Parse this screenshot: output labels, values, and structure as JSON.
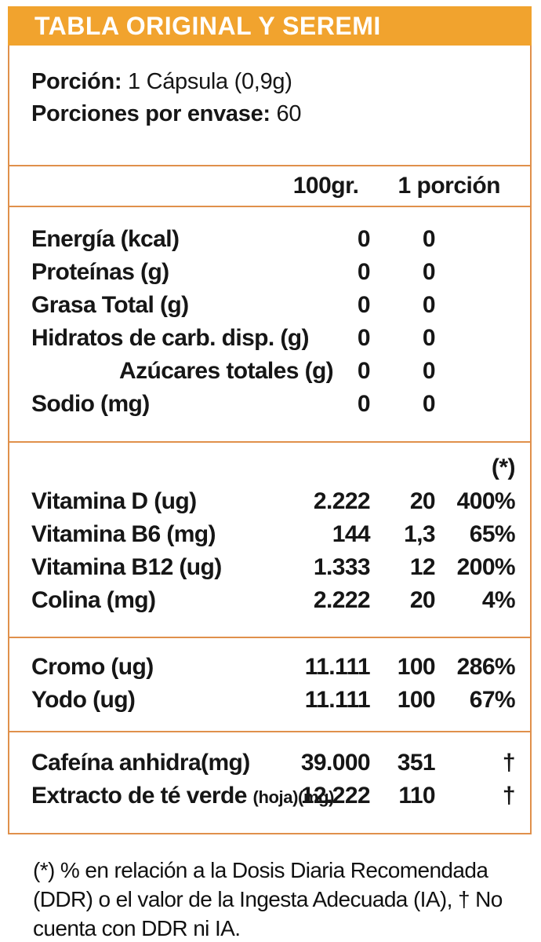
{
  "title": "TABLA ORIGINAL Y SEREMI",
  "serving": {
    "portion_label": "Porción:",
    "portion_value": "1 Cápsula (0,9g)",
    "servings_label": "Porciones por envase:",
    "servings_value": "60"
  },
  "columns": {
    "per100": "100gr.",
    "portion": "1 porción",
    "ddr_marker": "(*)"
  },
  "rows": {
    "zeros": [
      {
        "label": "Energía (kcal)",
        "per100": "0",
        "portion": "0"
      },
      {
        "label": "Proteínas (g)",
        "per100": "0",
        "portion": "0"
      },
      {
        "label": "Grasa Total (g)",
        "per100": "0",
        "portion": "0"
      },
      {
        "label": "Hidratos de carb. disp. (g)",
        "per100": "0",
        "portion": "0"
      },
      {
        "label": "Azúcares totales (g)",
        "per100": "0",
        "portion": "0"
      },
      {
        "label": "Sodio (mg)",
        "per100": "0",
        "portion": "0"
      }
    ],
    "vitamins": [
      {
        "label": "Vitamina D (ug)",
        "per100": "2.222",
        "portion": "20",
        "pct": "400%"
      },
      {
        "label": "Vitamina B6 (mg)",
        "per100": "144",
        "portion": "1,3",
        "pct": "65%"
      },
      {
        "label": "Vitamina B12 (ug)",
        "per100": "1.333",
        "portion": "12",
        "pct": "200%"
      },
      {
        "label": "Colina (mg)",
        "per100": "2.222",
        "portion": "20",
        "pct": "4%"
      }
    ],
    "minerals": [
      {
        "label": "Cromo (ug)",
        "per100": "11.111",
        "portion": "100",
        "pct": "286%"
      },
      {
        "label": "Yodo (ug)",
        "per100": "11.111",
        "portion": "100",
        "pct": "67%"
      }
    ],
    "others": [
      {
        "label": "Cafeína anhidra(mg)",
        "per100": "39.000",
        "portion": "351",
        "pct": "†"
      },
      {
        "label": "Extracto de té verde",
        "label_small": "(hoja)(mg)",
        "per100": "12.222",
        "portion": "110",
        "pct": "†"
      }
    ]
  },
  "footnote": "(*) % en relación a la Dosis Diaria Recomendada (DDR) o el valor de la Ingesta Adecuada (IA), † No cuenta con DDR ni IA.",
  "colors": {
    "header_bar": "#F1A32E",
    "border": "#E0904B",
    "title_text": "#FFFFFF",
    "text": "#161616"
  }
}
